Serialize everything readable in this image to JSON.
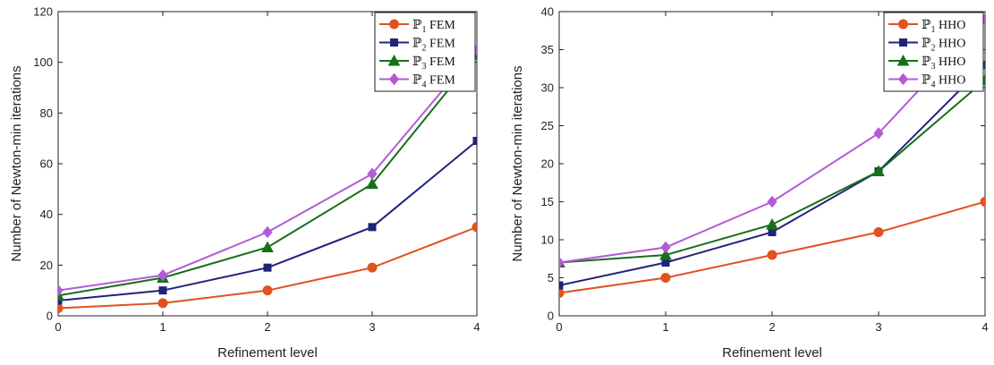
{
  "chart_data": [
    {
      "type": "line",
      "x": [
        0,
        1,
        2,
        3,
        4
      ],
      "xlabel": "Refinement level",
      "ylabel": "Number of Newton-min iterations",
      "xlim": [
        0,
        4
      ],
      "ylim": [
        0,
        120
      ],
      "xticks": [
        0,
        1,
        2,
        3,
        4
      ],
      "yticks": [
        0,
        20,
        40,
        60,
        80,
        100,
        120
      ],
      "grid": false,
      "legend_position": "top-right",
      "series": [
        {
          "name": "ℙ1 FEM",
          "label_base": "ℙ",
          "label_sub": "1",
          "label_suffix": " FEM",
          "color": "#e0531f",
          "marker": "circle",
          "values": [
            3,
            5,
            10,
            19,
            35
          ]
        },
        {
          "name": "ℙ2 FEM",
          "label_base": "ℙ",
          "label_sub": "2",
          "label_suffix": " FEM",
          "color": "#1f2479",
          "marker": "square",
          "values": [
            6,
            10,
            19,
            35,
            69
          ]
        },
        {
          "name": "ℙ3 FEM",
          "label_base": "ℙ",
          "label_sub": "3",
          "label_suffix": " FEM",
          "color": "#17701a",
          "marker": "triangle",
          "values": [
            8,
            15,
            27,
            52,
            103
          ]
        },
        {
          "name": "ℙ4 FEM",
          "label_base": "ℙ",
          "label_sub": "4",
          "label_suffix": " FEM",
          "color": "#b35bd6",
          "marker": "diamond",
          "values": [
            10,
            16,
            33,
            56,
            105
          ]
        }
      ]
    },
    {
      "type": "line",
      "x": [
        0,
        1,
        2,
        3,
        4
      ],
      "xlabel": "Refinement level",
      "ylabel": "Number of Newton-min iterations",
      "xlim": [
        0,
        4
      ],
      "ylim": [
        0,
        40
      ],
      "xticks": [
        0,
        1,
        2,
        3,
        4
      ],
      "yticks": [
        0,
        5,
        10,
        15,
        20,
        25,
        30,
        35,
        40
      ],
      "grid": false,
      "legend_position": "top-right",
      "series": [
        {
          "name": "ℙ1 HHO",
          "label_base": "ℙ",
          "label_sub": "1",
          "label_suffix": " HHO",
          "color": "#e0531f",
          "marker": "circle",
          "values": [
            3,
            5,
            8,
            11,
            15
          ]
        },
        {
          "name": "ℙ2 HHO",
          "label_base": "ℙ",
          "label_sub": "2",
          "label_suffix": " HHO",
          "color": "#1f2479",
          "marker": "square",
          "values": [
            4,
            7,
            11,
            19,
            33
          ]
        },
        {
          "name": "ℙ3 HHO",
          "label_base": "ℙ",
          "label_sub": "3",
          "label_suffix": " HHO",
          "color": "#17701a",
          "marker": "triangle",
          "values": [
            7,
            8,
            12,
            19,
            31
          ]
        },
        {
          "name": "ℙ4 HHO",
          "label_base": "ℙ",
          "label_sub": "4",
          "label_suffix": " HHO",
          "color": "#b35bd6",
          "marker": "diamond",
          "values": [
            7,
            9,
            15,
            24,
            39
          ]
        }
      ]
    }
  ]
}
